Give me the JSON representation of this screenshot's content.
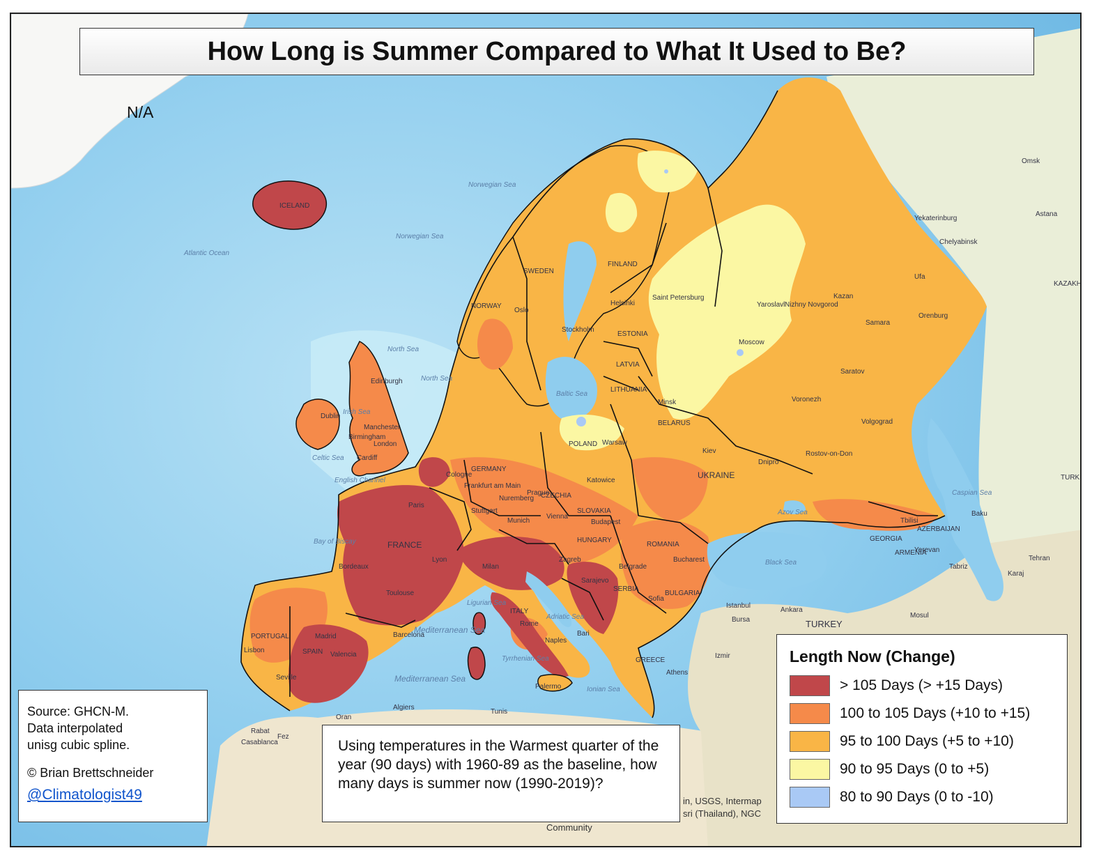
{
  "title": "How Long is Summer Compared to What It Used to Be?",
  "na_label": "N/A",
  "source": {
    "line1": "Source: GHCN-M.",
    "line2": "Data interpolated",
    "line3": "unisg cubic spline.",
    "copyright": "© Brian Brettschneider",
    "handle": "@Climatologist49"
  },
  "method_text": "Using temperatures in the Warmest quarter of the year (90 days) with 1960-89 as the baseline, how  many days is summer now (1990-2019)?",
  "legend": {
    "title": "Length Now (Change)",
    "items": [
      {
        "label": "> 105 Days (> +15 Days)",
        "color": "#c0474a"
      },
      {
        "label": "100 to 105 Days (+10 to +15)",
        "color": "#f58a4a"
      },
      {
        "label": "95 to 100 Days (+5 to +10)",
        "color": "#f9b546"
      },
      {
        "label": "90 to 95 Days (0 to +5)",
        "color": "#fbf7a3"
      },
      {
        "label": "80 to 90 Days (0 to -10)",
        "color": "#a9c9f5"
      }
    ]
  },
  "credits": {
    "line1": "in, USGS, Intermap",
    "line2": "sri (Thailand), NGC",
    "line3": "Community"
  },
  "map_labels": {
    "countries": [
      "ICELAND",
      "NORWAY",
      "SWEDEN",
      "FINLAND",
      "FRANCE",
      "SPAIN",
      "GERMANY",
      "POLAND",
      "UKRAINE",
      "ROMANIA",
      "HUNGARY",
      "ITALY",
      "BULGARIA",
      "TURKEY",
      "GEORGIA",
      "ARMENIA",
      "AZERBAIJAN",
      "KAZAKHS",
      "TURKM",
      "CZECHIA",
      "SLOVAKIA",
      "SERBIA",
      "BELARUS",
      "LATVIA",
      "LITHUANIA",
      "ESTONIA",
      "GREECE",
      "PORTUGAL"
    ],
    "cities": [
      "Paris",
      "Lyon",
      "Toulouse",
      "Bordeaux",
      "Madrid",
      "Valencia",
      "Barcelona",
      "Lisbon",
      "Seville",
      "Milan",
      "Rome",
      "Naples",
      "Bari",
      "Palermo",
      "Munich",
      "Vienna",
      "Budapest",
      "Prague",
      "Warsaw",
      "Kiev",
      "Minsk",
      "Moscow",
      "Kazan",
      "Samara",
      "Saratov",
      "Volgograd",
      "Voronezh",
      "Rostov-on-Don",
      "Dnipro",
      "Istanbul",
      "Ankara",
      "Bursa",
      "Izmir",
      "Athens",
      "Bucharest",
      "Belgrade",
      "Algiers",
      "Oran",
      "Tunis",
      "Rabat",
      "Fez",
      "Casablanca",
      "Tbilisi",
      "Baku",
      "Yerevan",
      "Tabriz",
      "Tehran",
      "Mosul",
      "Karaj",
      "Orenburg",
      "Ufa",
      "Chelyabinsk",
      "Yekaterinburg",
      "Omsk",
      "Astana",
      "Stockholm",
      "Oslo",
      "Helsinki",
      "Dublin",
      "London",
      "Edinburgh",
      "Birmingham",
      "Manchester",
      "Cardiff",
      "Cologne",
      "Frankfurt am Main",
      "Stuttgart",
      "Nuremberg",
      "Katowice",
      "Zagreb",
      "Sarajevo",
      "Sofia",
      "Nizhny Novgorod",
      "Yaroslavl",
      "Saint Petersburg"
    ],
    "seas": [
      "North Sea",
      "Norwegian Sea",
      "Baltic Sea",
      "Black Sea",
      "Caspian Sea",
      "Mediterranean Sea",
      "Tyrrhenian Sea",
      "Ionian Sea",
      "Adriatic Sea",
      "Ligurian Sea",
      "Bay of Biscay",
      "Celtic Sea",
      "Irish Sea",
      "English Channel",
      "Atlantic Ocean",
      "Azov Sea"
    ]
  }
}
